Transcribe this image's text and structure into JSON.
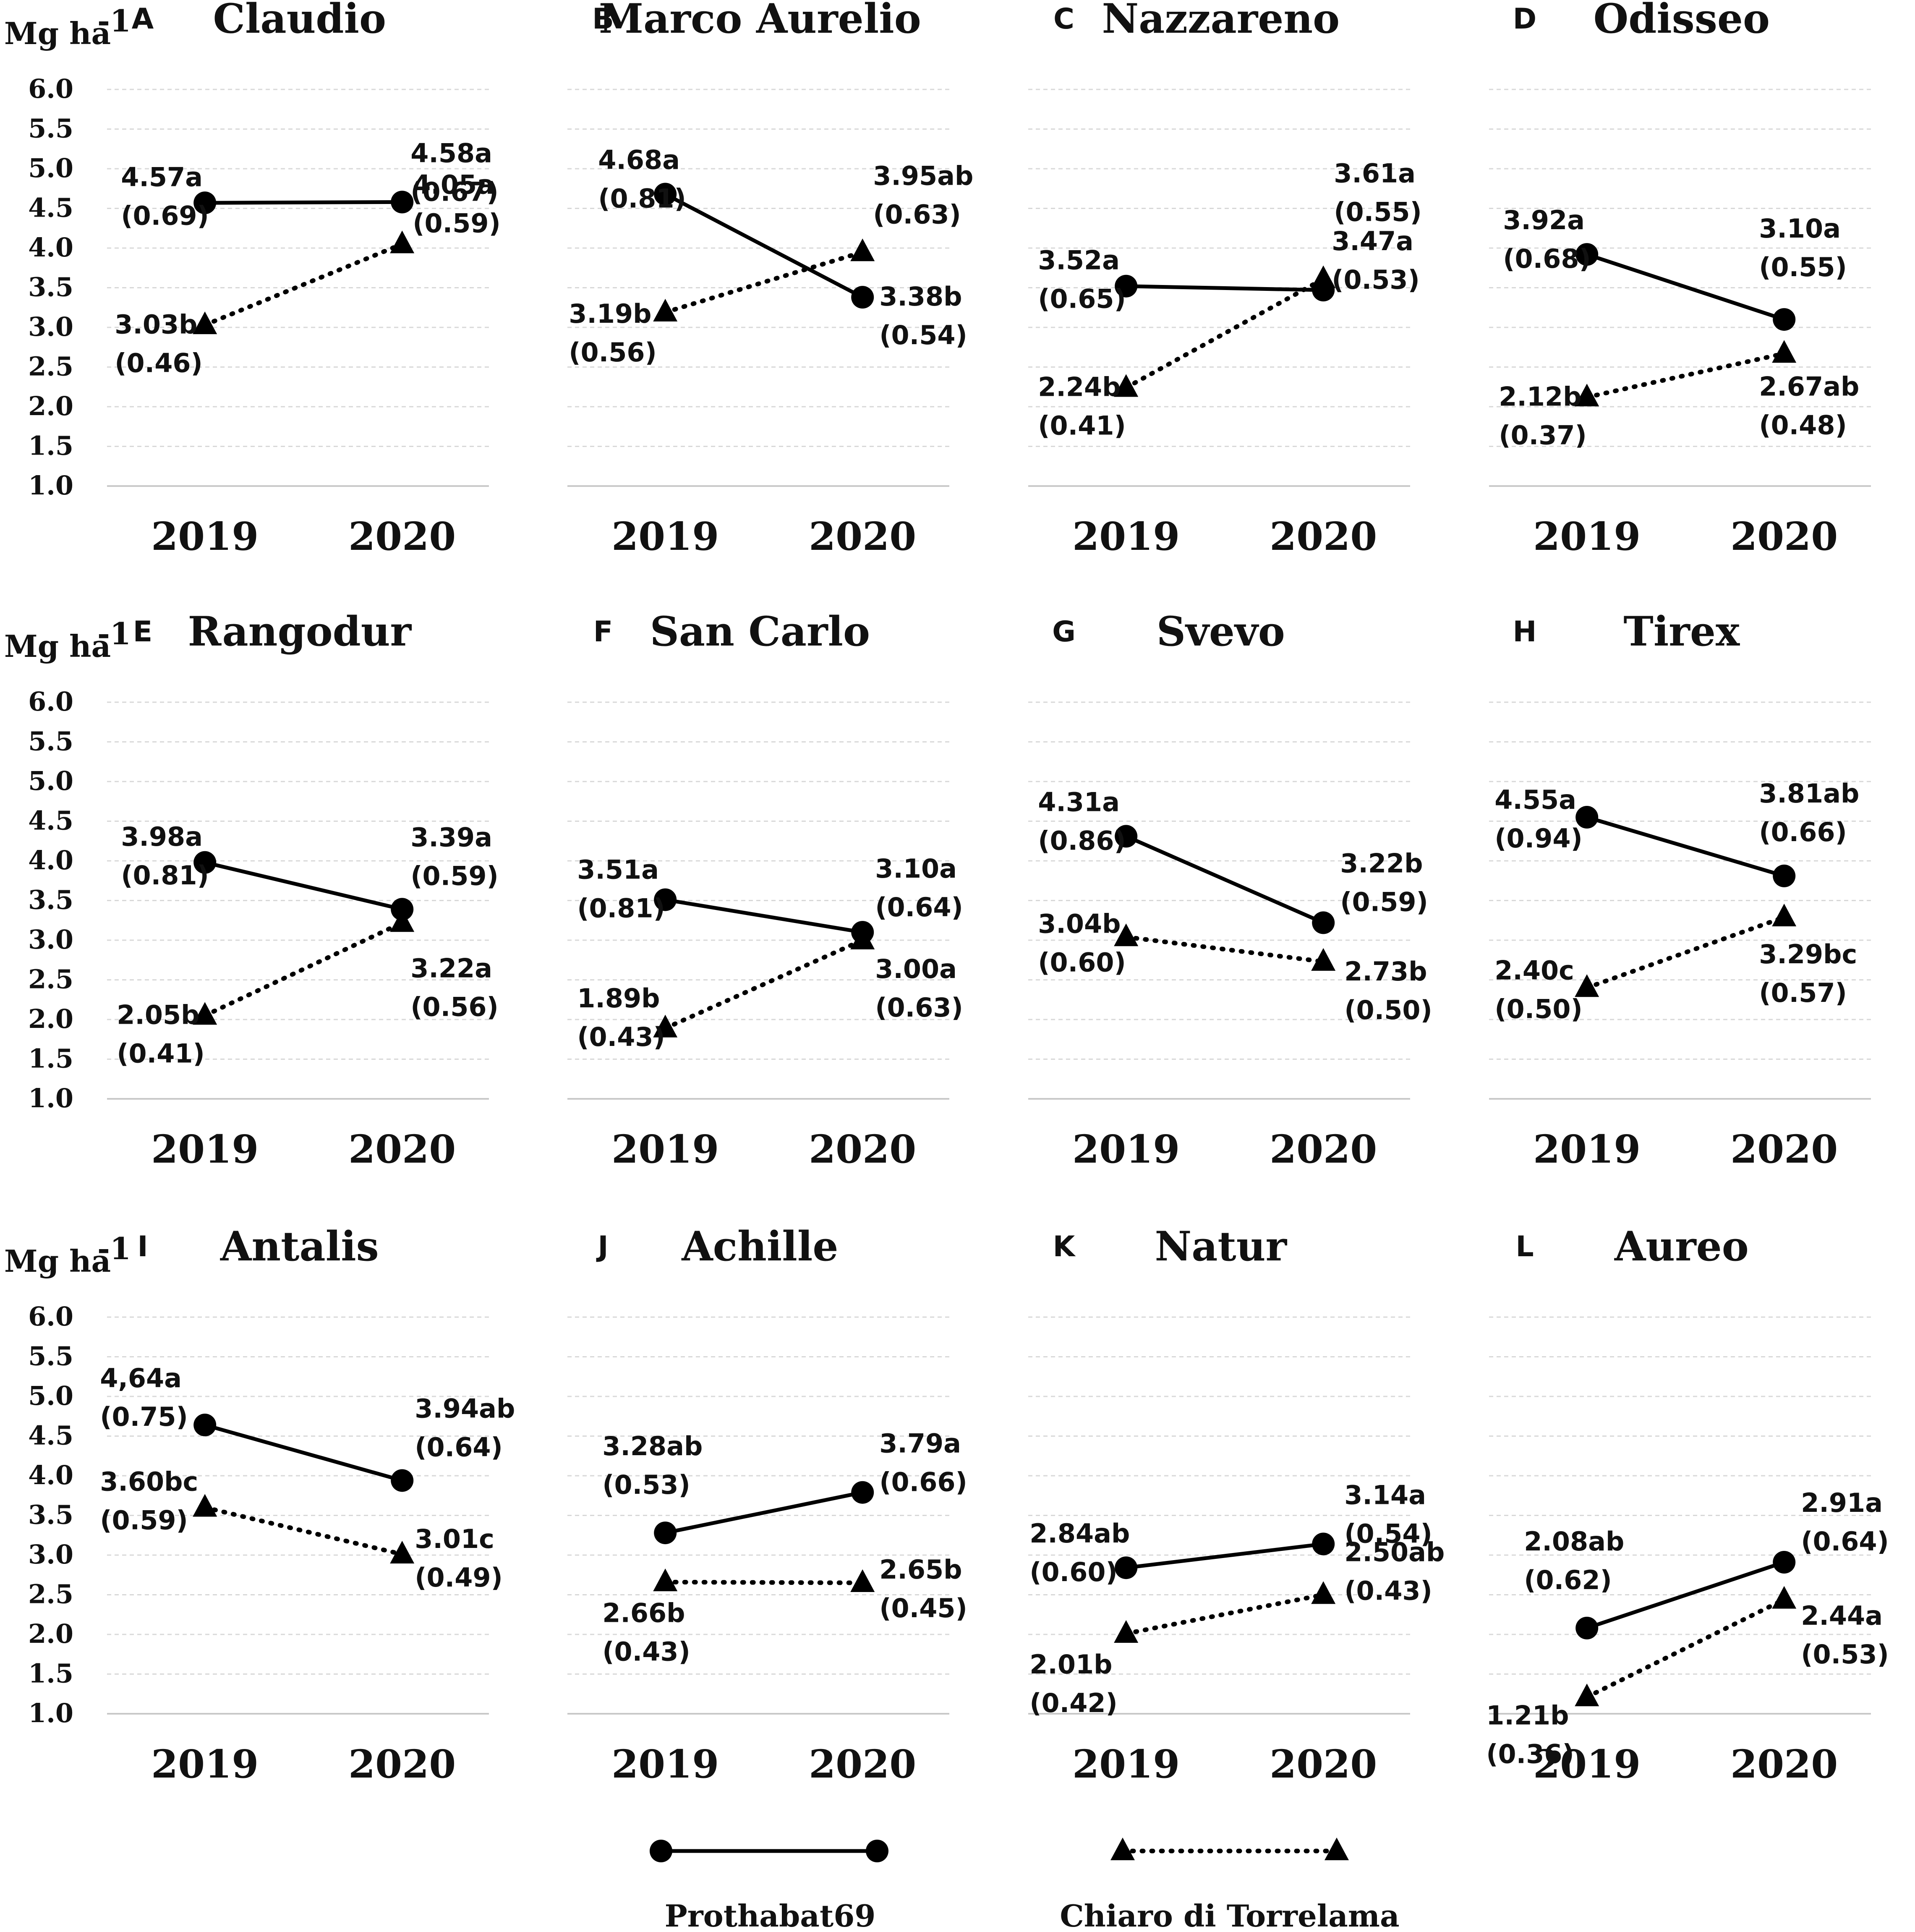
{
  "chart_data": {
    "type": "line",
    "ylabel": "Mg ha",
    "ylabel_sup": "-1",
    "ylim": [
      1.0,
      6.0
    ],
    "yticks": [
      "1.0",
      "1.5",
      "2.0",
      "2.5",
      "3.0",
      "3.5",
      "4.0",
      "4.5",
      "5.0",
      "5.5",
      "6.0"
    ],
    "x": [
      "2019",
      "2020"
    ],
    "legend": [
      {
        "name": "Prothabat69",
        "style": "solid",
        "marker": "circle"
      },
      {
        "name": "Chiaro di Torrelama",
        "style": "dotted",
        "marker": "triangle"
      }
    ],
    "panels": [
      {
        "letter": "A",
        "title": "Claudio",
        "series": [
          {
            "name": "Prothabat69",
            "values": [
              4.57,
              4.58
            ],
            "labels": [
              "4.57a",
              "4.58a"
            ],
            "sd": [
              "(0.69)",
              "(0.67)"
            ]
          },
          {
            "name": "Chiaro di Torrelama",
            "values": [
              3.03,
              4.05
            ],
            "labels": [
              "3.03b",
              "4.05a"
            ],
            "sd": [
              "(0.46)",
              "(0.59)"
            ]
          }
        ]
      },
      {
        "letter": "B",
        "title": "Marco Aurelio",
        "series": [
          {
            "name": "Prothabat69",
            "values": [
              4.68,
              3.38
            ],
            "labels": [
              "4.68a",
              "3.38b"
            ],
            "sd": [
              "(0.81)",
              "(0.54)"
            ]
          },
          {
            "name": "Chiaro di Torrelama",
            "values": [
              3.19,
              3.95
            ],
            "labels": [
              "3.19b",
              "3.95ab"
            ],
            "sd": [
              "(0.56)",
              "(0.63)"
            ]
          }
        ]
      },
      {
        "letter": "C",
        "title": "Nazzareno",
        "series": [
          {
            "name": "Prothabat69",
            "values": [
              3.52,
              3.47
            ],
            "labels": [
              "3.52a",
              "3.47a"
            ],
            "sd": [
              "(0.65)",
              "(0.53)"
            ]
          },
          {
            "name": "Chiaro di Torrelama",
            "values": [
              2.24,
              3.61
            ],
            "labels": [
              "2.24b",
              "3.61a"
            ],
            "sd": [
              "(0.41)",
              "(0.55)"
            ]
          }
        ]
      },
      {
        "letter": "D",
        "title": "Odisseo",
        "series": [
          {
            "name": "Prothabat69",
            "values": [
              3.92,
              3.1
            ],
            "labels": [
              "3.92a",
              "3.10a"
            ],
            "sd": [
              "(0.68)",
              "(0.55)"
            ]
          },
          {
            "name": "Chiaro di Torrelama",
            "values": [
              2.12,
              2.67
            ],
            "labels": [
              "2.12b",
              "2.67ab"
            ],
            "sd": [
              "(0.37)",
              "(0.48)"
            ]
          }
        ]
      },
      {
        "letter": "E",
        "title": "Rangodur",
        "series": [
          {
            "name": "Prothabat69",
            "values": [
              3.98,
              3.39
            ],
            "labels": [
              "3.98a",
              "3.39a"
            ],
            "sd": [
              "(0.81)",
              "(0.59)"
            ]
          },
          {
            "name": "Chiaro di Torrelama",
            "values": [
              2.05,
              3.22
            ],
            "labels": [
              "2.05b",
              "3.22a"
            ],
            "sd": [
              "(0.41)",
              "(0.56)"
            ]
          }
        ]
      },
      {
        "letter": "F",
        "title": "San Carlo",
        "series": [
          {
            "name": "Prothabat69",
            "values": [
              3.51,
              3.1
            ],
            "labels": [
              "3.51a",
              "3.10a"
            ],
            "sd": [
              "(0.81)",
              "(0.64)"
            ]
          },
          {
            "name": "Chiaro di Torrelama",
            "values": [
              1.89,
              3.0
            ],
            "labels": [
              "1.89b",
              "3.00a"
            ],
            "sd": [
              "(0.43)",
              "(0.63)"
            ]
          }
        ]
      },
      {
        "letter": "G",
        "title": "Svevo",
        "series": [
          {
            "name": "Prothabat69",
            "values": [
              4.31,
              3.22
            ],
            "labels": [
              "4.31a",
              "3.22b"
            ],
            "sd": [
              "(0.86)",
              "(0.59)"
            ]
          },
          {
            "name": "Chiaro di Torrelama",
            "values": [
              3.04,
              2.73
            ],
            "labels": [
              "3.04b",
              "2.73b"
            ],
            "sd": [
              "(0.60)",
              "(0.50)"
            ]
          }
        ]
      },
      {
        "letter": "H",
        "title": "Tirex",
        "series": [
          {
            "name": "Prothabat69",
            "values": [
              4.55,
              3.81
            ],
            "labels": [
              "4.55a",
              "3.81ab"
            ],
            "sd": [
              "(0.94)",
              "(0.66)"
            ]
          },
          {
            "name": "Chiaro di Torrelama",
            "values": [
              2.4,
              3.29
            ],
            "labels": [
              "2.40c",
              "3.29bc"
            ],
            "sd": [
              "(0.50)",
              "(0.57)"
            ]
          }
        ]
      },
      {
        "letter": "I",
        "title": "Antalis",
        "series": [
          {
            "name": "Prothabat69",
            "values": [
              4.64,
              3.94
            ],
            "labels": [
              "4,64a",
              "3.94ab"
            ],
            "sd": [
              "(0.75)",
              "(0.64)"
            ]
          },
          {
            "name": "Chiaro di Torrelama",
            "values": [
              3.6,
              3.01
            ],
            "labels": [
              "3.60bc",
              "3.01c"
            ],
            "sd": [
              "(0.59)",
              "(0.49)"
            ]
          }
        ]
      },
      {
        "letter": "J",
        "title": "Achille",
        "series": [
          {
            "name": "Prothabat69",
            "values": [
              3.28,
              3.79
            ],
            "labels": [
              "3.28ab",
              "3.79a"
            ],
            "sd": [
              "(0.53)",
              "(0.66)"
            ]
          },
          {
            "name": "Chiaro di Torrelama",
            "values": [
              2.66,
              2.65
            ],
            "labels": [
              "2.66b",
              "2.65b"
            ],
            "sd": [
              "(0.43)",
              "(0.45)"
            ]
          }
        ]
      },
      {
        "letter": "K",
        "title": "Natur",
        "series": [
          {
            "name": "Prothabat69",
            "values": [
              2.84,
              3.14
            ],
            "labels": [
              "2.84ab",
              "3.14a"
            ],
            "sd": [
              "(0.60)",
              "(0.54)"
            ]
          },
          {
            "name": "Chiaro di Torrelama",
            "values": [
              2.01,
              2.5
            ],
            "labels": [
              "2.01b",
              "2.50ab"
            ],
            "sd": [
              "(0.42)",
              "(0.43)"
            ]
          }
        ]
      },
      {
        "letter": "L",
        "title": "Aureo",
        "series": [
          {
            "name": "Prothabat69",
            "values": [
              2.08,
              2.91
            ],
            "labels": [
              "2.08ab",
              "2.91a"
            ],
            "sd": [
              "(0.62)",
              "(0.64)"
            ]
          },
          {
            "name": "Chiaro di Torrelama",
            "values": [
              1.21,
              2.44
            ],
            "labels": [
              "1.21b",
              "2.44a"
            ],
            "sd": [
              "(0.36)",
              "(0.53)"
            ]
          }
        ]
      }
    ]
  }
}
